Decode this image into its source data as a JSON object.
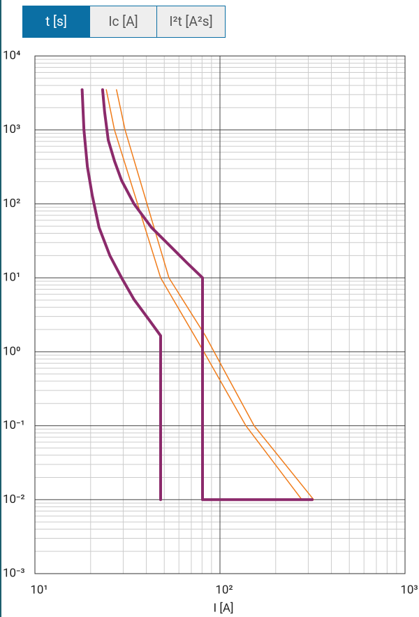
{
  "tabs": [
    "t [s]",
    "Ic [A]",
    "I²t [A²s]"
  ],
  "active_tab": 0,
  "chart_data": {
    "type": "line",
    "x_label": "I [A]",
    "log_x": true,
    "log_y": true,
    "grid": true,
    "xlim": [
      10,
      1000
    ],
    "xticks": [
      {
        "value": 10,
        "label": "10¹"
      },
      {
        "value": 100,
        "label": "10²"
      },
      {
        "value": 1000,
        "label": "10³"
      }
    ],
    "ylim": [
      0.001,
      10000
    ],
    "yticks": [
      {
        "value": 10000,
        "label": "10⁴"
      },
      {
        "value": 1000,
        "label": "10³"
      },
      {
        "value": 100,
        "label": "10²"
      },
      {
        "value": 10,
        "label": "10¹"
      },
      {
        "value": 1,
        "label": "10⁰"
      },
      {
        "value": 0.1,
        "label": "10⁻¹"
      },
      {
        "value": 0.01,
        "label": "10⁻²"
      },
      {
        "value": 0.001,
        "label": "10⁻³"
      }
    ],
    "series": [
      {
        "color": "#f07c1a",
        "width": 1.5,
        "x": [
          24.3,
          26.9,
          47.8,
          81.8,
          138,
          277
        ],
        "values": [
          3500,
          1000,
          10,
          1,
          0.1,
          0.01
        ]
      },
      {
        "color": "#f07c1a",
        "width": 1.5,
        "x": [
          27.6,
          30.7,
          53,
          83.4,
          153,
          321
        ],
        "values": [
          3500,
          1000,
          10,
          1.65,
          0.1,
          0.01
        ]
      },
      {
        "color": "#8b2a6b",
        "width": 4,
        "x": [
          18,
          18.4,
          19.2,
          20.4,
          22.2,
          25.4,
          29.4,
          34.3,
          41.6,
          47.8,
          47.8
        ],
        "values": [
          3500,
          1000,
          320,
          130,
          48,
          20,
          10,
          5.1,
          2.65,
          1.65,
          0.01
        ]
      },
      {
        "color": "#8b2a6b",
        "width": 4,
        "x": [
          23.2,
          23.8,
          24.9,
          26.9,
          29.4,
          34.3,
          42.6,
          53,
          65.9,
          80.5,
          80.5,
          315
        ],
        "values": [
          3500,
          1750,
          730,
          380,
          207,
          100,
          48,
          28,
          16.2,
          10,
          0.01,
          0.01
        ]
      }
    ]
  }
}
